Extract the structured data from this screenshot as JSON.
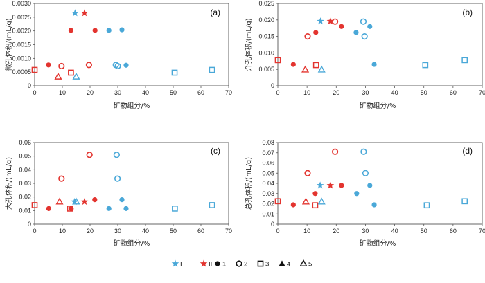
{
  "colors": {
    "red": "#e3342f",
    "blue": "#4aa8d8",
    "axis": "#555555",
    "text": "#222222"
  },
  "chart_data": [
    {
      "type": "scatter",
      "panel_label": "(a)",
      "xlabel": "矿物组分/%",
      "ylabel": "微孔体积/(mL/g)",
      "xlim": [
        0,
        70
      ],
      "ylim": [
        0,
        0.003
      ],
      "xticks": [
        "0",
        "10",
        "20",
        "30",
        "40",
        "50",
        "60",
        "70"
      ],
      "yticks": [
        "0",
        "0.0005",
        "0.0010",
        "0.0015",
        "0.0020",
        "0.0025",
        "0.0030"
      ],
      "points": [
        {
          "x": 0,
          "y": 0.00058,
          "shape": "square",
          "color": "red"
        },
        {
          "x": 5,
          "y": 0.00076,
          "shape": "dot",
          "color": "red"
        },
        {
          "x": 9.7,
          "y": 0.00072,
          "shape": "circle",
          "color": "red"
        },
        {
          "x": 8.5,
          "y": 0.00033,
          "shape": "triangle-open",
          "color": "red"
        },
        {
          "x": 13.1,
          "y": 0.00048,
          "shape": "square",
          "color": "red"
        },
        {
          "x": 13.1,
          "y": 0.00202,
          "shape": "dot",
          "color": "red"
        },
        {
          "x": 14.6,
          "y": 0.00265,
          "shape": "star",
          "color": "blue"
        },
        {
          "x": 15,
          "y": 0.00033,
          "shape": "triangle-open",
          "color": "blue"
        },
        {
          "x": 18,
          "y": 0.00265,
          "shape": "star",
          "color": "red"
        },
        {
          "x": 19.6,
          "y": 0.00076,
          "shape": "circle",
          "color": "red"
        },
        {
          "x": 21.8,
          "y": 0.00202,
          "shape": "dot",
          "color": "red"
        },
        {
          "x": 26.8,
          "y": 0.00202,
          "shape": "dot",
          "color": "blue"
        },
        {
          "x": 29.3,
          "y": 0.00076,
          "shape": "circle",
          "color": "blue"
        },
        {
          "x": 30,
          "y": 0.00072,
          "shape": "circle",
          "color": "blue"
        },
        {
          "x": 31.5,
          "y": 0.00204,
          "shape": "dot",
          "color": "blue"
        },
        {
          "x": 33,
          "y": 0.00075,
          "shape": "dot",
          "color": "blue"
        },
        {
          "x": 50.5,
          "y": 0.00048,
          "shape": "square",
          "color": "blue"
        },
        {
          "x": 64,
          "y": 0.00058,
          "shape": "square",
          "color": "blue"
        }
      ]
    },
    {
      "type": "scatter",
      "panel_label": "(b)",
      "xlabel": "矿物组分/%",
      "ylabel": "介孔体积/(mL/g)",
      "xlim": [
        0,
        70
      ],
      "ylim": [
        0,
        0.025
      ],
      "xticks": [
        "0",
        "10",
        "20",
        "30",
        "40",
        "50",
        "60",
        "70"
      ],
      "yticks": [
        "0",
        "0.005",
        "0.010",
        "0.015",
        "0.020",
        "0.025"
      ],
      "points": [
        {
          "x": 0,
          "y": 0.0078,
          "shape": "square",
          "color": "red"
        },
        {
          "x": 5.3,
          "y": 0.0065,
          "shape": "dot",
          "color": "red"
        },
        {
          "x": 9.4,
          "y": 0.0049,
          "shape": "triangle-open",
          "color": "red"
        },
        {
          "x": 10.2,
          "y": 0.015,
          "shape": "circle",
          "color": "red"
        },
        {
          "x": 13,
          "y": 0.0162,
          "shape": "dot",
          "color": "red"
        },
        {
          "x": 13.1,
          "y": 0.0063,
          "shape": "square",
          "color": "red"
        },
        {
          "x": 14.6,
          "y": 0.0196,
          "shape": "star",
          "color": "blue"
        },
        {
          "x": 15,
          "y": 0.0049,
          "shape": "triangle-open",
          "color": "blue"
        },
        {
          "x": 18,
          "y": 0.0196,
          "shape": "star",
          "color": "red"
        },
        {
          "x": 19.6,
          "y": 0.0195,
          "shape": "circle",
          "color": "red"
        },
        {
          "x": 21.8,
          "y": 0.018,
          "shape": "dot",
          "color": "red"
        },
        {
          "x": 26.8,
          "y": 0.0162,
          "shape": "dot",
          "color": "blue"
        },
        {
          "x": 29.3,
          "y": 0.0195,
          "shape": "circle",
          "color": "blue"
        },
        {
          "x": 29.7,
          "y": 0.015,
          "shape": "circle",
          "color": "blue"
        },
        {
          "x": 31.5,
          "y": 0.018,
          "shape": "dot",
          "color": "blue"
        },
        {
          "x": 33,
          "y": 0.0065,
          "shape": "dot",
          "color": "blue"
        },
        {
          "x": 50.5,
          "y": 0.0063,
          "shape": "square",
          "color": "blue"
        },
        {
          "x": 64,
          "y": 0.0078,
          "shape": "square",
          "color": "blue"
        }
      ]
    },
    {
      "type": "scatter",
      "panel_label": "(c)",
      "xlabel": "矿物组分/%",
      "ylabel": "大孔体积/(mL/g)",
      "xlim": [
        0,
        70
      ],
      "ylim": [
        0,
        0.06
      ],
      "xticks": [
        "0",
        "10",
        "20",
        "30",
        "40",
        "50",
        "60",
        "70"
      ],
      "yticks": [
        "0",
        "0.01",
        "0.02",
        "0.03",
        "0.04",
        "0.05",
        "0.06"
      ],
      "points": [
        {
          "x": 0,
          "y": 0.014,
          "shape": "square",
          "color": "red"
        },
        {
          "x": 5.1,
          "y": 0.0115,
          "shape": "dot",
          "color": "red"
        },
        {
          "x": 9,
          "y": 0.0165,
          "shape": "triangle-open",
          "color": "red"
        },
        {
          "x": 9.7,
          "y": 0.0335,
          "shape": "circle",
          "color": "red"
        },
        {
          "x": 12.8,
          "y": 0.0115,
          "shape": "square",
          "color": "red"
        },
        {
          "x": 13.2,
          "y": 0.0115,
          "shape": "dot",
          "color": "red"
        },
        {
          "x": 14.4,
          "y": 0.0165,
          "shape": "star",
          "color": "blue"
        },
        {
          "x": 15,
          "y": 0.0165,
          "shape": "triangle-open",
          "color": "blue"
        },
        {
          "x": 18,
          "y": 0.0165,
          "shape": "star",
          "color": "red"
        },
        {
          "x": 19.8,
          "y": 0.051,
          "shape": "circle",
          "color": "red"
        },
        {
          "x": 21.7,
          "y": 0.018,
          "shape": "dot",
          "color": "red"
        },
        {
          "x": 26.8,
          "y": 0.0115,
          "shape": "dot",
          "color": "blue"
        },
        {
          "x": 29.6,
          "y": 0.051,
          "shape": "circle",
          "color": "blue"
        },
        {
          "x": 29.9,
          "y": 0.0335,
          "shape": "circle",
          "color": "blue"
        },
        {
          "x": 31.5,
          "y": 0.018,
          "shape": "dot",
          "color": "blue"
        },
        {
          "x": 33,
          "y": 0.0115,
          "shape": "dot",
          "color": "blue"
        },
        {
          "x": 50.6,
          "y": 0.0115,
          "shape": "square",
          "color": "blue"
        },
        {
          "x": 64,
          "y": 0.014,
          "shape": "square",
          "color": "blue"
        }
      ]
    },
    {
      "type": "scatter",
      "panel_label": "(d)",
      "xlabel": "矿物组分/%",
      "ylabel": "总孔体积/(mL/g)",
      "xlim": [
        0,
        70
      ],
      "ylim": [
        0,
        0.08
      ],
      "xticks": [
        "0",
        "10",
        "20",
        "30",
        "40",
        "50",
        "60",
        "70"
      ],
      "yticks": [
        "0",
        "0.01",
        "0.02",
        "0.03",
        "0.04",
        "0.05",
        "0.06",
        "0.07",
        "0.08"
      ],
      "points": [
        {
          "x": 0,
          "y": 0.0225,
          "shape": "square",
          "color": "red"
        },
        {
          "x": 5.3,
          "y": 0.019,
          "shape": "dot",
          "color": "red"
        },
        {
          "x": 9.6,
          "y": 0.022,
          "shape": "triangle-open",
          "color": "red"
        },
        {
          "x": 10.2,
          "y": 0.05,
          "shape": "circle",
          "color": "red"
        },
        {
          "x": 12.8,
          "y": 0.03,
          "shape": "dot",
          "color": "red"
        },
        {
          "x": 12.8,
          "y": 0.0185,
          "shape": "square",
          "color": "red"
        },
        {
          "x": 14.5,
          "y": 0.038,
          "shape": "star",
          "color": "blue"
        },
        {
          "x": 15,
          "y": 0.022,
          "shape": "triangle-open",
          "color": "blue"
        },
        {
          "x": 18,
          "y": 0.038,
          "shape": "star",
          "color": "red"
        },
        {
          "x": 19.6,
          "y": 0.071,
          "shape": "circle",
          "color": "red"
        },
        {
          "x": 21.8,
          "y": 0.038,
          "shape": "dot",
          "color": "red"
        },
        {
          "x": 27,
          "y": 0.03,
          "shape": "dot",
          "color": "blue"
        },
        {
          "x": 29.4,
          "y": 0.071,
          "shape": "circle",
          "color": "blue"
        },
        {
          "x": 30,
          "y": 0.05,
          "shape": "circle",
          "color": "blue"
        },
        {
          "x": 31.5,
          "y": 0.038,
          "shape": "dot",
          "color": "blue"
        },
        {
          "x": 33,
          "y": 0.019,
          "shape": "dot",
          "color": "blue"
        },
        {
          "x": 51,
          "y": 0.0185,
          "shape": "square",
          "color": "blue"
        },
        {
          "x": 64,
          "y": 0.0225,
          "shape": "square",
          "color": "blue"
        }
      ]
    }
  ],
  "legend": [
    {
      "label": "I",
      "shape": "star",
      "color": "blue"
    },
    {
      "label": "II",
      "shape": "star",
      "color": "red"
    },
    {
      "label": "1",
      "shape": "dot",
      "color": "black"
    },
    {
      "label": "2",
      "shape": "circle",
      "color": "black"
    },
    {
      "label": "3",
      "shape": "square",
      "color": "black"
    },
    {
      "label": "4",
      "shape": "triangle",
      "color": "black"
    },
    {
      "label": "5",
      "shape": "triangle-open",
      "color": "black"
    }
  ]
}
